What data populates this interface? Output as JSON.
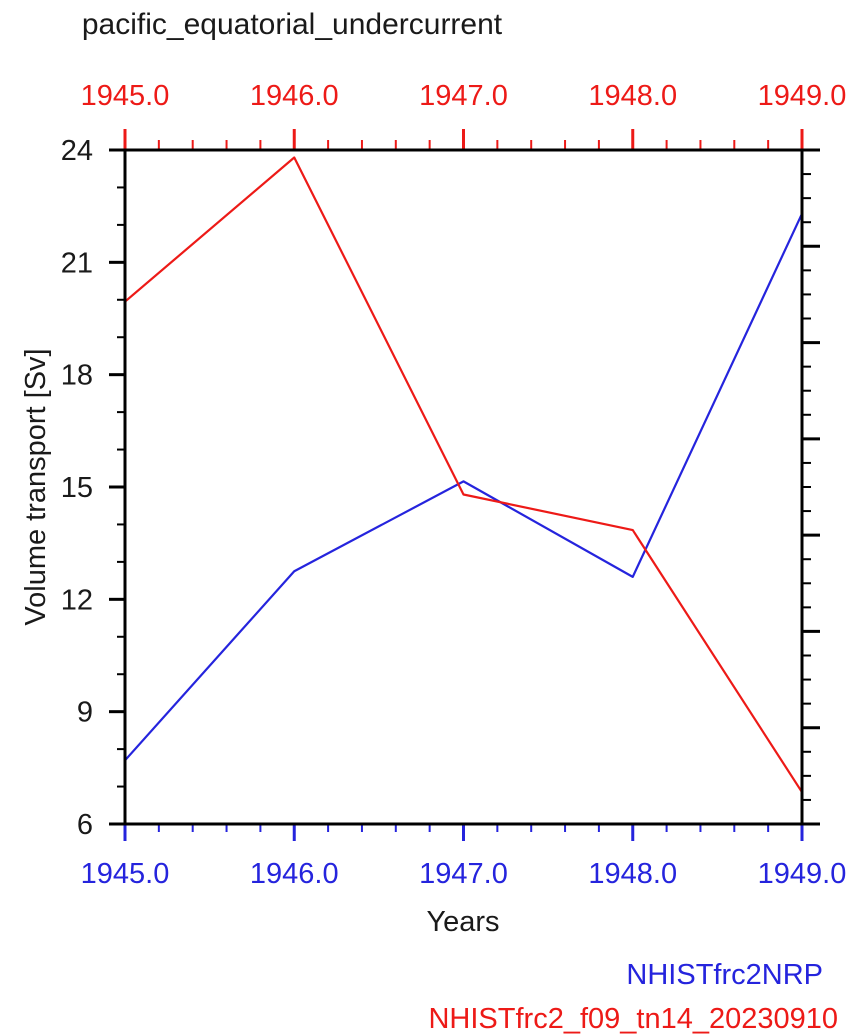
{
  "chart_data": {
    "type": "line",
    "title": "pacific_equatorial_undercurrent",
    "xlabel": "Years",
    "ylabel": "Volume transport [Sv]",
    "x": [
      1945.0,
      1946.0,
      1947.0,
      1948.0,
      1949.0
    ],
    "series": [
      {
        "name": "NHISTfrc2NRP",
        "color": "#2524dd",
        "values": [
          7.7,
          12.75,
          15.15,
          12.6,
          22.3
        ]
      },
      {
        "name": "NHISTfrc2_f09_tn14_20230910",
        "color": "#ed1a17",
        "values": [
          19.95,
          23.8,
          14.8,
          13.85,
          6.85
        ]
      }
    ],
    "xlim": [
      1945,
      1949
    ],
    "ylim": [
      6,
      24
    ],
    "x_major_step": 1,
    "x_minor_step": 0.2,
    "y_major_step": 3,
    "y_minor_step": 1,
    "y_tick_labels": [
      "6",
      "9",
      "12",
      "15",
      "18",
      "21",
      "24"
    ],
    "top_axis": {
      "color": "#ed1a17",
      "tick_labels": [
        "1945.0",
        "1946.0",
        "1947.0",
        "1948.0",
        "1949.0"
      ]
    },
    "bottom_axis": {
      "color": "#2524dd",
      "tick_labels": [
        "1945.0",
        "1946.0",
        "1947.0",
        "1948.0",
        "1949.0"
      ]
    },
    "right_axis": {
      "major_divisions": 7,
      "minor_per_major": 4
    },
    "frame_color": "#000000",
    "grid": false,
    "legend": {
      "position": "bottom-right",
      "entries": [
        {
          "label": "NHISTfrc2NRP",
          "color": "#2524dd"
        },
        {
          "label": "NHISTfrc2_f09_tn14_20230910",
          "color": "#ed1a17"
        }
      ]
    }
  }
}
